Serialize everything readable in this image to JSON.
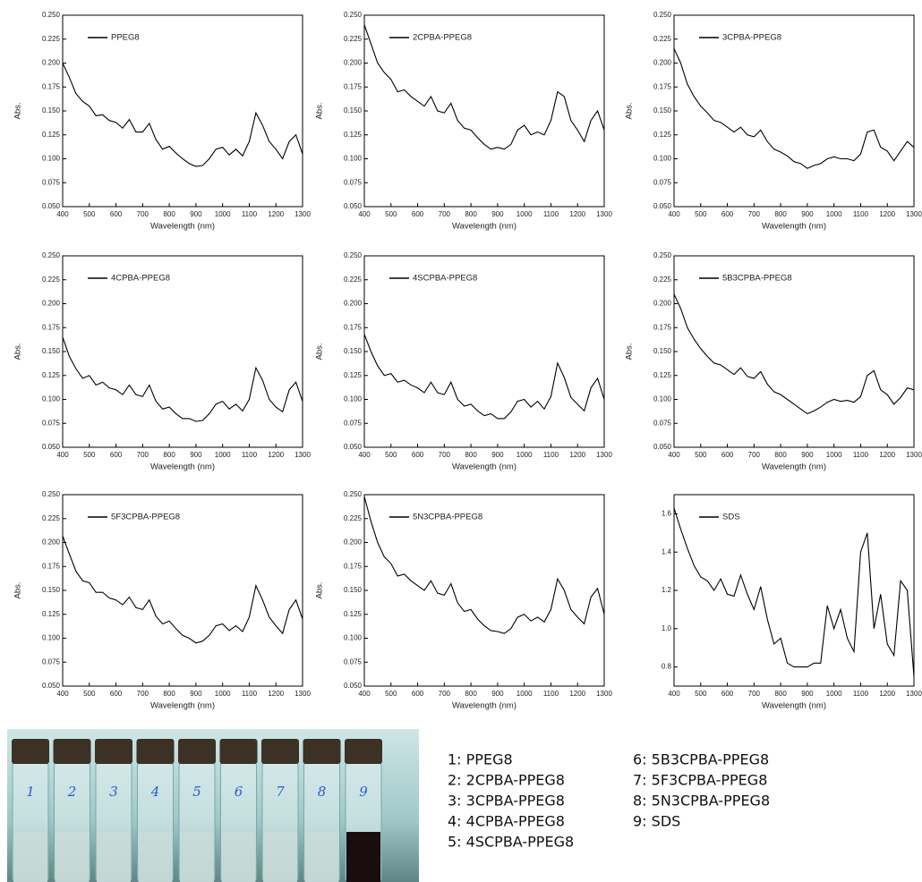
{
  "chart_data": [
    {
      "type": "line",
      "ylabel": "Abs.",
      "xlabel": "Wavelength (nm)",
      "xlim": [
        400,
        1300
      ],
      "ylim": [
        0.05,
        0.25
      ],
      "xticks": [
        400,
        500,
        600,
        700,
        800,
        900,
        1000,
        1100,
        1200,
        1300
      ],
      "yticks": [
        {
          "value": 0.05,
          "label": "0.050"
        },
        0.075,
        {
          "value": 0.1,
          "label": "0.100"
        },
        0.125,
        {
          "value": 0.15,
          "label": "0.150"
        },
        0.175,
        {
          "value": 0.2,
          "label": "0.200"
        },
        0.225,
        {
          "value": 0.25,
          "label": "0.250"
        }
      ],
      "x": [
        400,
        425,
        450,
        475,
        500,
        525,
        550,
        575,
        600,
        625,
        650,
        675,
        700,
        725,
        750,
        775,
        800,
        825,
        850,
        875,
        900,
        925,
        950,
        975,
        1000,
        1025,
        1050,
        1075,
        1100,
        1125,
        1150,
        1175,
        1200,
        1225,
        1250,
        1275,
        1300
      ],
      "series": [
        {
          "name": "PPEG8",
          "color": "#000000",
          "values": [
            0.2,
            0.185,
            0.168,
            0.16,
            0.155,
            0.145,
            0.146,
            0.14,
            0.138,
            0.132,
            0.141,
            0.128,
            0.128,
            0.137,
            0.12,
            0.11,
            0.113,
            0.106,
            0.1,
            0.095,
            0.092,
            0.093,
            0.1,
            0.11,
            0.112,
            0.104,
            0.11,
            0.103,
            0.118,
            0.148,
            0.135,
            0.118,
            0.11,
            0.1,
            0.118,
            0.125,
            0.105
          ]
        }
      ]
    },
    {
      "type": "line",
      "ylabel": "Abs.",
      "xlabel": "Wavelength (nm)",
      "xlim": [
        400,
        1300
      ],
      "ylim": [
        0.05,
        0.25
      ],
      "xticks": [
        400,
        500,
        600,
        700,
        800,
        900,
        1000,
        1100,
        1200,
        1300
      ],
      "yticks": [
        {
          "value": 0.05,
          "label": "0.050"
        },
        0.075,
        {
          "value": 0.1,
          "label": "0.100"
        },
        0.125,
        {
          "value": 0.15,
          "label": "0.150"
        },
        0.175,
        {
          "value": 0.2,
          "label": "0.200"
        },
        0.225,
        {
          "value": 0.25,
          "label": "0.250"
        }
      ],
      "x": [
        400,
        425,
        450,
        475,
        500,
        525,
        550,
        575,
        600,
        625,
        650,
        675,
        700,
        725,
        750,
        775,
        800,
        825,
        850,
        875,
        900,
        925,
        950,
        975,
        1000,
        1025,
        1050,
        1075,
        1100,
        1125,
        1150,
        1175,
        1200,
        1225,
        1250,
        1275,
        1300
      ],
      "series": [
        {
          "name": "2CPBA-PPEG8",
          "color": "#000000",
          "values": [
            0.24,
            0.22,
            0.2,
            0.19,
            0.183,
            0.17,
            0.172,
            0.165,
            0.16,
            0.155,
            0.165,
            0.15,
            0.148,
            0.158,
            0.14,
            0.132,
            0.13,
            0.122,
            0.115,
            0.11,
            0.112,
            0.11,
            0.115,
            0.13,
            0.135,
            0.125,
            0.128,
            0.125,
            0.14,
            0.17,
            0.165,
            0.14,
            0.13,
            0.118,
            0.14,
            0.15,
            0.13
          ]
        }
      ]
    },
    {
      "type": "line",
      "ylabel": "Abs.",
      "xlabel": "Wavelength (nm)",
      "xlim": [
        400,
        1300
      ],
      "ylim": [
        0.05,
        0.25
      ],
      "xticks": [
        400,
        500,
        600,
        700,
        800,
        900,
        1000,
        1100,
        1200,
        1300
      ],
      "yticks": [
        {
          "value": 0.05,
          "label": "0.050"
        },
        0.075,
        {
          "value": 0.1,
          "label": "0.100"
        },
        0.125,
        {
          "value": 0.15,
          "label": "0.150"
        },
        0.175,
        {
          "value": 0.2,
          "label": "0.200"
        },
        0.225,
        {
          "value": 0.25,
          "label": "0.250"
        }
      ],
      "x": [
        400,
        425,
        450,
        475,
        500,
        525,
        550,
        575,
        600,
        625,
        650,
        675,
        700,
        725,
        750,
        775,
        800,
        825,
        850,
        875,
        900,
        925,
        950,
        975,
        1000,
        1025,
        1050,
        1075,
        1100,
        1125,
        1150,
        1175,
        1200,
        1225,
        1250,
        1275,
        1300
      ],
      "series": [
        {
          "name": "3CPBA-PPEG8",
          "color": "#000000",
          "values": [
            0.215,
            0.2,
            0.178,
            0.165,
            0.155,
            0.148,
            0.14,
            0.138,
            0.133,
            0.128,
            0.133,
            0.125,
            0.123,
            0.13,
            0.118,
            0.11,
            0.107,
            0.103,
            0.097,
            0.095,
            0.09,
            0.093,
            0.095,
            0.1,
            0.102,
            0.1,
            0.1,
            0.098,
            0.105,
            0.128,
            0.13,
            0.112,
            0.108,
            0.098,
            0.108,
            0.118,
            0.112
          ]
        }
      ]
    },
    {
      "type": "line",
      "ylabel": "Abs.",
      "xlabel": "Wavelength (nm)",
      "xlim": [
        400,
        1300
      ],
      "ylim": [
        0.05,
        0.25
      ],
      "xticks": [
        400,
        500,
        600,
        700,
        800,
        900,
        1000,
        1100,
        1200,
        1300
      ],
      "yticks": [
        {
          "value": 0.05,
          "label": "0.050"
        },
        0.075,
        {
          "value": 0.1,
          "label": "0.100"
        },
        0.125,
        {
          "value": 0.15,
          "label": "0.150"
        },
        0.175,
        {
          "value": 0.2,
          "label": "0.200"
        },
        0.225,
        {
          "value": 0.25,
          "label": "0.250"
        }
      ],
      "x": [
        400,
        425,
        450,
        475,
        500,
        525,
        550,
        575,
        600,
        625,
        650,
        675,
        700,
        725,
        750,
        775,
        800,
        825,
        850,
        875,
        900,
        925,
        950,
        975,
        1000,
        1025,
        1050,
        1075,
        1100,
        1125,
        1150,
        1175,
        1200,
        1225,
        1250,
        1275,
        1300
      ],
      "series": [
        {
          "name": "4CPBA-PPEG8",
          "color": "#000000",
          "values": [
            0.165,
            0.145,
            0.132,
            0.122,
            0.125,
            0.115,
            0.118,
            0.112,
            0.11,
            0.105,
            0.115,
            0.105,
            0.103,
            0.115,
            0.098,
            0.09,
            0.092,
            0.085,
            0.08,
            0.08,
            0.077,
            0.078,
            0.085,
            0.095,
            0.098,
            0.09,
            0.095,
            0.088,
            0.1,
            0.133,
            0.12,
            0.1,
            0.092,
            0.087,
            0.11,
            0.118,
            0.098
          ]
        }
      ]
    },
    {
      "type": "line",
      "ylabel": "Abs.",
      "xlabel": "Wavelength (nm)",
      "xlim": [
        400,
        1300
      ],
      "ylim": [
        0.05,
        0.25
      ],
      "xticks": [
        400,
        500,
        600,
        700,
        800,
        900,
        1000,
        1100,
        1200,
        1300
      ],
      "yticks": [
        {
          "value": 0.05,
          "label": "0.050"
        },
        0.075,
        {
          "value": 0.1,
          "label": "0.100"
        },
        0.125,
        {
          "value": 0.15,
          "label": "0.150"
        },
        0.175,
        {
          "value": 0.2,
          "label": "0.200"
        },
        0.225,
        {
          "value": 0.25,
          "label": "0.250"
        }
      ],
      "x": [
        400,
        425,
        450,
        475,
        500,
        525,
        550,
        575,
        600,
        625,
        650,
        675,
        700,
        725,
        750,
        775,
        800,
        825,
        850,
        875,
        900,
        925,
        950,
        975,
        1000,
        1025,
        1050,
        1075,
        1100,
        1125,
        1150,
        1175,
        1200,
        1225,
        1250,
        1275,
        1300
      ],
      "series": [
        {
          "name": "4SCPBA-PPEG8",
          "color": "#000000",
          "values": [
            0.168,
            0.15,
            0.135,
            0.125,
            0.127,
            0.118,
            0.12,
            0.115,
            0.112,
            0.107,
            0.118,
            0.107,
            0.105,
            0.118,
            0.1,
            0.093,
            0.095,
            0.088,
            0.083,
            0.085,
            0.08,
            0.08,
            0.087,
            0.098,
            0.1,
            0.092,
            0.098,
            0.09,
            0.103,
            0.138,
            0.123,
            0.102,
            0.095,
            0.088,
            0.112,
            0.122,
            0.1
          ]
        }
      ]
    },
    {
      "type": "line",
      "ylabel": "Abs.",
      "xlabel": "Wavelength (nm)",
      "xlim": [
        400,
        1300
      ],
      "ylim": [
        0.05,
        0.25
      ],
      "xticks": [
        400,
        500,
        600,
        700,
        800,
        900,
        1000,
        1100,
        1200,
        1300
      ],
      "yticks": [
        {
          "value": 0.05,
          "label": "0.050"
        },
        0.075,
        {
          "value": 0.1,
          "label": "0.100"
        },
        0.125,
        {
          "value": 0.15,
          "label": "0.150"
        },
        0.175,
        {
          "value": 0.2,
          "label": "0.200"
        },
        0.225,
        {
          "value": 0.25,
          "label": "0.250"
        }
      ],
      "x": [
        400,
        425,
        450,
        475,
        500,
        525,
        550,
        575,
        600,
        625,
        650,
        675,
        700,
        725,
        750,
        775,
        800,
        825,
        850,
        875,
        900,
        925,
        950,
        975,
        1000,
        1025,
        1050,
        1075,
        1100,
        1125,
        1150,
        1175,
        1200,
        1225,
        1250,
        1275,
        1300
      ],
      "series": [
        {
          "name": "5B3CPBA-PPEG8",
          "color": "#000000",
          "values": [
            0.21,
            0.195,
            0.175,
            0.163,
            0.153,
            0.145,
            0.138,
            0.136,
            0.131,
            0.126,
            0.133,
            0.124,
            0.122,
            0.129,
            0.116,
            0.108,
            0.105,
            0.1,
            0.095,
            0.09,
            0.085,
            0.088,
            0.092,
            0.097,
            0.1,
            0.098,
            0.099,
            0.097,
            0.103,
            0.125,
            0.13,
            0.11,
            0.105,
            0.095,
            0.102,
            0.112,
            0.11
          ]
        }
      ]
    },
    {
      "type": "line",
      "ylabel": "Abs.",
      "xlabel": "Wavelength (nm)",
      "xlim": [
        400,
        1300
      ],
      "ylim": [
        0.05,
        0.25
      ],
      "xticks": [
        400,
        500,
        600,
        700,
        800,
        900,
        1000,
        1100,
        1200,
        1300
      ],
      "yticks": [
        {
          "value": 0.05,
          "label": "0.050"
        },
        0.075,
        {
          "value": 0.1,
          "label": "0.100"
        },
        0.125,
        {
          "value": 0.15,
          "label": "0.150"
        },
        0.175,
        {
          "value": 0.2,
          "label": "0.200"
        },
        0.225,
        {
          "value": 0.25,
          "label": "0.250"
        }
      ],
      "x": [
        400,
        425,
        450,
        475,
        500,
        525,
        550,
        575,
        600,
        625,
        650,
        675,
        700,
        725,
        750,
        775,
        800,
        825,
        850,
        875,
        900,
        925,
        950,
        975,
        1000,
        1025,
        1050,
        1075,
        1100,
        1125,
        1150,
        1175,
        1200,
        1225,
        1250,
        1275,
        1300
      ],
      "series": [
        {
          "name": "5F3CPBA-PPEG8",
          "color": "#000000",
          "values": [
            0.207,
            0.188,
            0.17,
            0.16,
            0.158,
            0.148,
            0.148,
            0.142,
            0.14,
            0.135,
            0.143,
            0.132,
            0.13,
            0.14,
            0.123,
            0.115,
            0.118,
            0.11,
            0.103,
            0.1,
            0.095,
            0.097,
            0.103,
            0.113,
            0.115,
            0.108,
            0.113,
            0.107,
            0.122,
            0.155,
            0.14,
            0.122,
            0.113,
            0.105,
            0.13,
            0.14,
            0.12
          ]
        }
      ]
    },
    {
      "type": "line",
      "ylabel": "Abs.",
      "xlabel": "Wavelength (nm)",
      "xlim": [
        400,
        1300
      ],
      "ylim": [
        0.05,
        0.25
      ],
      "xticks": [
        400,
        500,
        600,
        700,
        800,
        900,
        1000,
        1100,
        1200,
        1300
      ],
      "yticks": [
        {
          "value": 0.05,
          "label": "0.050"
        },
        0.075,
        {
          "value": 0.1,
          "label": "0.100"
        },
        0.125,
        {
          "value": 0.15,
          "label": "0.150"
        },
        0.175,
        {
          "value": 0.2,
          "label": "0.200"
        },
        0.225,
        {
          "value": 0.25,
          "label": "0.250"
        }
      ],
      "x": [
        400,
        425,
        450,
        475,
        500,
        525,
        550,
        575,
        600,
        625,
        650,
        675,
        700,
        725,
        750,
        775,
        800,
        825,
        850,
        875,
        900,
        925,
        950,
        975,
        1000,
        1025,
        1050,
        1075,
        1100,
        1125,
        1150,
        1175,
        1200,
        1225,
        1250,
        1275,
        1300
      ],
      "series": [
        {
          "name": "5N3CPBA-PPEG8",
          "color": "#000000",
          "values": [
            0.248,
            0.222,
            0.2,
            0.185,
            0.178,
            0.165,
            0.167,
            0.16,
            0.155,
            0.15,
            0.16,
            0.147,
            0.145,
            0.157,
            0.137,
            0.128,
            0.13,
            0.12,
            0.113,
            0.108,
            0.107,
            0.105,
            0.11,
            0.122,
            0.125,
            0.118,
            0.122,
            0.117,
            0.13,
            0.162,
            0.15,
            0.13,
            0.122,
            0.115,
            0.143,
            0.152,
            0.125
          ]
        }
      ]
    },
    {
      "type": "line",
      "xlabel": "Wavelength (nm)",
      "xlim": [
        400,
        1300
      ],
      "ylim": [
        0.7,
        1.7
      ],
      "xticks": [
        400,
        500,
        600,
        700,
        800,
        900,
        1000,
        1100,
        1200,
        1300
      ],
      "yticks": [
        0.8,
        {
          "value": 1.0,
          "label": "1.0"
        },
        1.2,
        1.4,
        1.6
      ],
      "x": [
        400,
        425,
        450,
        475,
        500,
        525,
        550,
        575,
        600,
        625,
        650,
        675,
        700,
        725,
        750,
        775,
        800,
        825,
        850,
        875,
        900,
        925,
        950,
        975,
        1000,
        1025,
        1050,
        1075,
        1100,
        1125,
        1150,
        1175,
        1200,
        1225,
        1250,
        1275,
        1300
      ],
      "series": [
        {
          "name": "SDS",
          "color": "#000000",
          "values": [
            1.63,
            1.52,
            1.42,
            1.33,
            1.27,
            1.25,
            1.2,
            1.26,
            1.18,
            1.17,
            1.28,
            1.18,
            1.1,
            1.22,
            1.05,
            0.92,
            0.95,
            0.82,
            0.8,
            0.8,
            0.8,
            0.82,
            0.82,
            1.12,
            1.0,
            1.1,
            0.95,
            0.88,
            1.4,
            1.5,
            1.0,
            1.18,
            0.92,
            0.86,
            1.25,
            1.2,
            0.75
          ]
        }
      ]
    }
  ],
  "photo": {
    "vial_labels": [
      "1",
      "2",
      "3",
      "4",
      "5",
      "6",
      "7",
      "8",
      "9"
    ]
  },
  "key": {
    "items": [
      "1: PPEG8",
      "2: 2CPBA-PPEG8",
      "3: 3CPBA-PPEG8",
      "4: 4CPBA-PPEG8",
      "5: 4SCPBA-PPEG8",
      "6: 5B3CPBA-PPEG8",
      "7: 5F3CPBA-PPEG8",
      "8: 5N3CPBA-PPEG8",
      "9: SDS"
    ]
  }
}
